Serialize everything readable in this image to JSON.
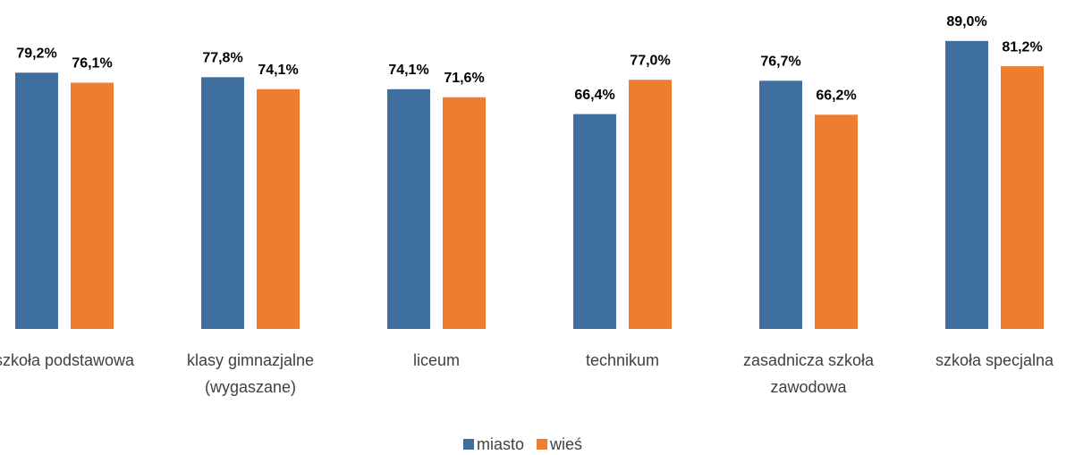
{
  "chart_data": {
    "type": "bar",
    "categories": [
      "szkoła podstawowa",
      "klasy gimnazjalne (wygaszane)",
      "liceum",
      "technikum",
      "zasadnicza szkoła zawodowa",
      "szkoła specjalna"
    ],
    "series": [
      {
        "name": "miasto",
        "color": "#3e6f9f",
        "values": [
          79.2,
          77.8,
          74.1,
          66.4,
          76.7,
          89.0
        ],
        "value_labels": [
          "79,2%",
          "77,8%",
          "74,1%",
          "66,4%",
          "76,7%",
          "89,0%"
        ]
      },
      {
        "name": "wieś",
        "color": "#ed7d31",
        "values": [
          76.1,
          74.1,
          71.6,
          77.0,
          66.2,
          81.2
        ],
        "value_labels": [
          "76,1%",
          "74,1%",
          "71,6%",
          "77,0%",
          "66,2%",
          "81,2%"
        ]
      }
    ],
    "ylim": [
      0,
      100
    ],
    "legend": "bottom"
  }
}
